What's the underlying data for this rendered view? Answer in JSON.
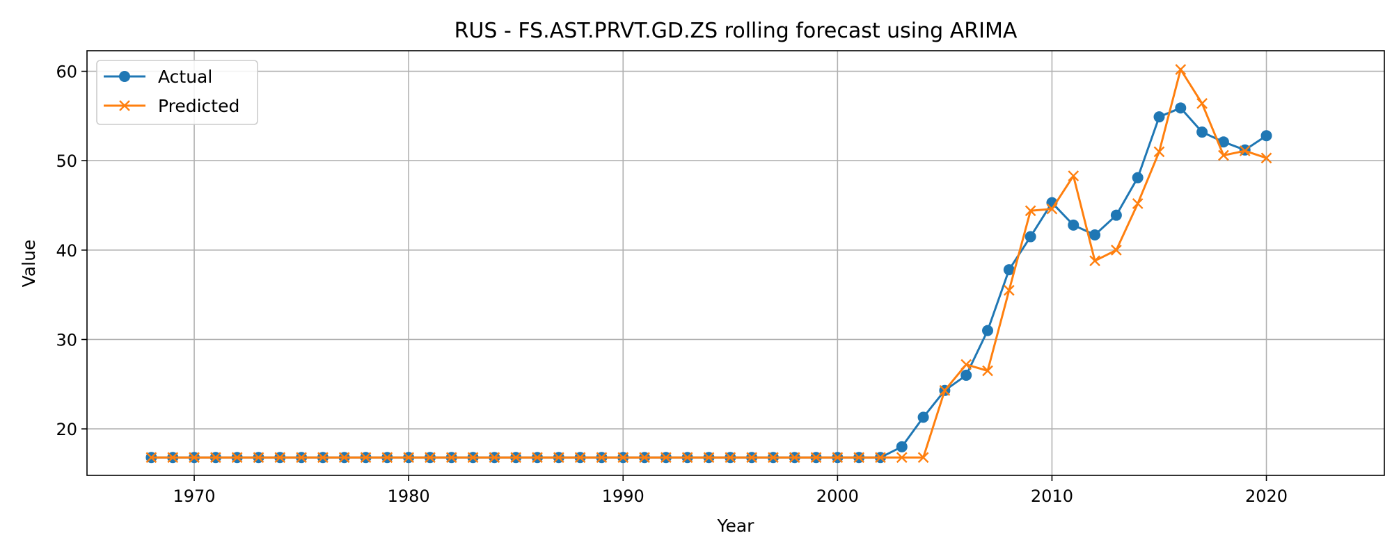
{
  "chart_data": {
    "type": "line",
    "title": "RUS - FS.AST.PRVT.GD.ZS rolling forecast using ARIMA",
    "xlabel": "Year",
    "ylabel": "Value",
    "xlim": [
      1965,
      2025.5
    ],
    "ylim": [
      14.8,
      62.3
    ],
    "xticks": [
      1970,
      1980,
      1990,
      2000,
      2010,
      2020
    ],
    "yticks": [
      20,
      30,
      40,
      50,
      60
    ],
    "grid": true,
    "legend_position": "top-left",
    "x": [
      1968,
      1969,
      1970,
      1971,
      1972,
      1973,
      1974,
      1975,
      1976,
      1977,
      1978,
      1979,
      1980,
      1981,
      1982,
      1983,
      1984,
      1985,
      1986,
      1987,
      1988,
      1989,
      1990,
      1991,
      1992,
      1993,
      1994,
      1995,
      1996,
      1997,
      1998,
      1999,
      2000,
      2001,
      2002,
      2003,
      2004,
      2005,
      2006,
      2007,
      2008,
      2009,
      2010,
      2011,
      2012,
      2013,
      2014,
      2015,
      2016,
      2017,
      2018,
      2019,
      2020
    ],
    "series": [
      {
        "name": "Actual",
        "color": "#1f77b4",
        "marker": "circle",
        "values": [
          16.8,
          16.8,
          16.8,
          16.8,
          16.8,
          16.8,
          16.8,
          16.8,
          16.8,
          16.8,
          16.8,
          16.8,
          16.8,
          16.8,
          16.8,
          16.8,
          16.8,
          16.8,
          16.8,
          16.8,
          16.8,
          16.8,
          16.8,
          16.8,
          16.8,
          16.8,
          16.8,
          16.8,
          16.8,
          16.8,
          16.8,
          16.8,
          16.8,
          16.8,
          16.8,
          18.0,
          21.3,
          24.3,
          26.0,
          31.0,
          37.8,
          41.5,
          45.3,
          42.8,
          41.7,
          43.9,
          48.1,
          54.9,
          55.9,
          53.2,
          52.1,
          51.2,
          52.8
        ]
      },
      {
        "name": "Predicted",
        "color": "#ff7f0e",
        "marker": "x",
        "values": [
          16.8,
          16.8,
          16.8,
          16.8,
          16.8,
          16.8,
          16.8,
          16.8,
          16.8,
          16.8,
          16.8,
          16.8,
          16.8,
          16.8,
          16.8,
          16.8,
          16.8,
          16.8,
          16.8,
          16.8,
          16.8,
          16.8,
          16.8,
          16.8,
          16.8,
          16.8,
          16.8,
          16.8,
          16.8,
          16.8,
          16.8,
          16.8,
          16.8,
          16.8,
          16.8,
          16.8,
          16.8,
          24.3,
          27.2,
          26.5,
          35.5,
          44.4,
          44.6,
          48.3,
          38.8,
          40.0,
          45.2,
          51.0,
          60.2,
          56.4,
          50.6,
          51.1,
          50.3
        ]
      }
    ]
  }
}
